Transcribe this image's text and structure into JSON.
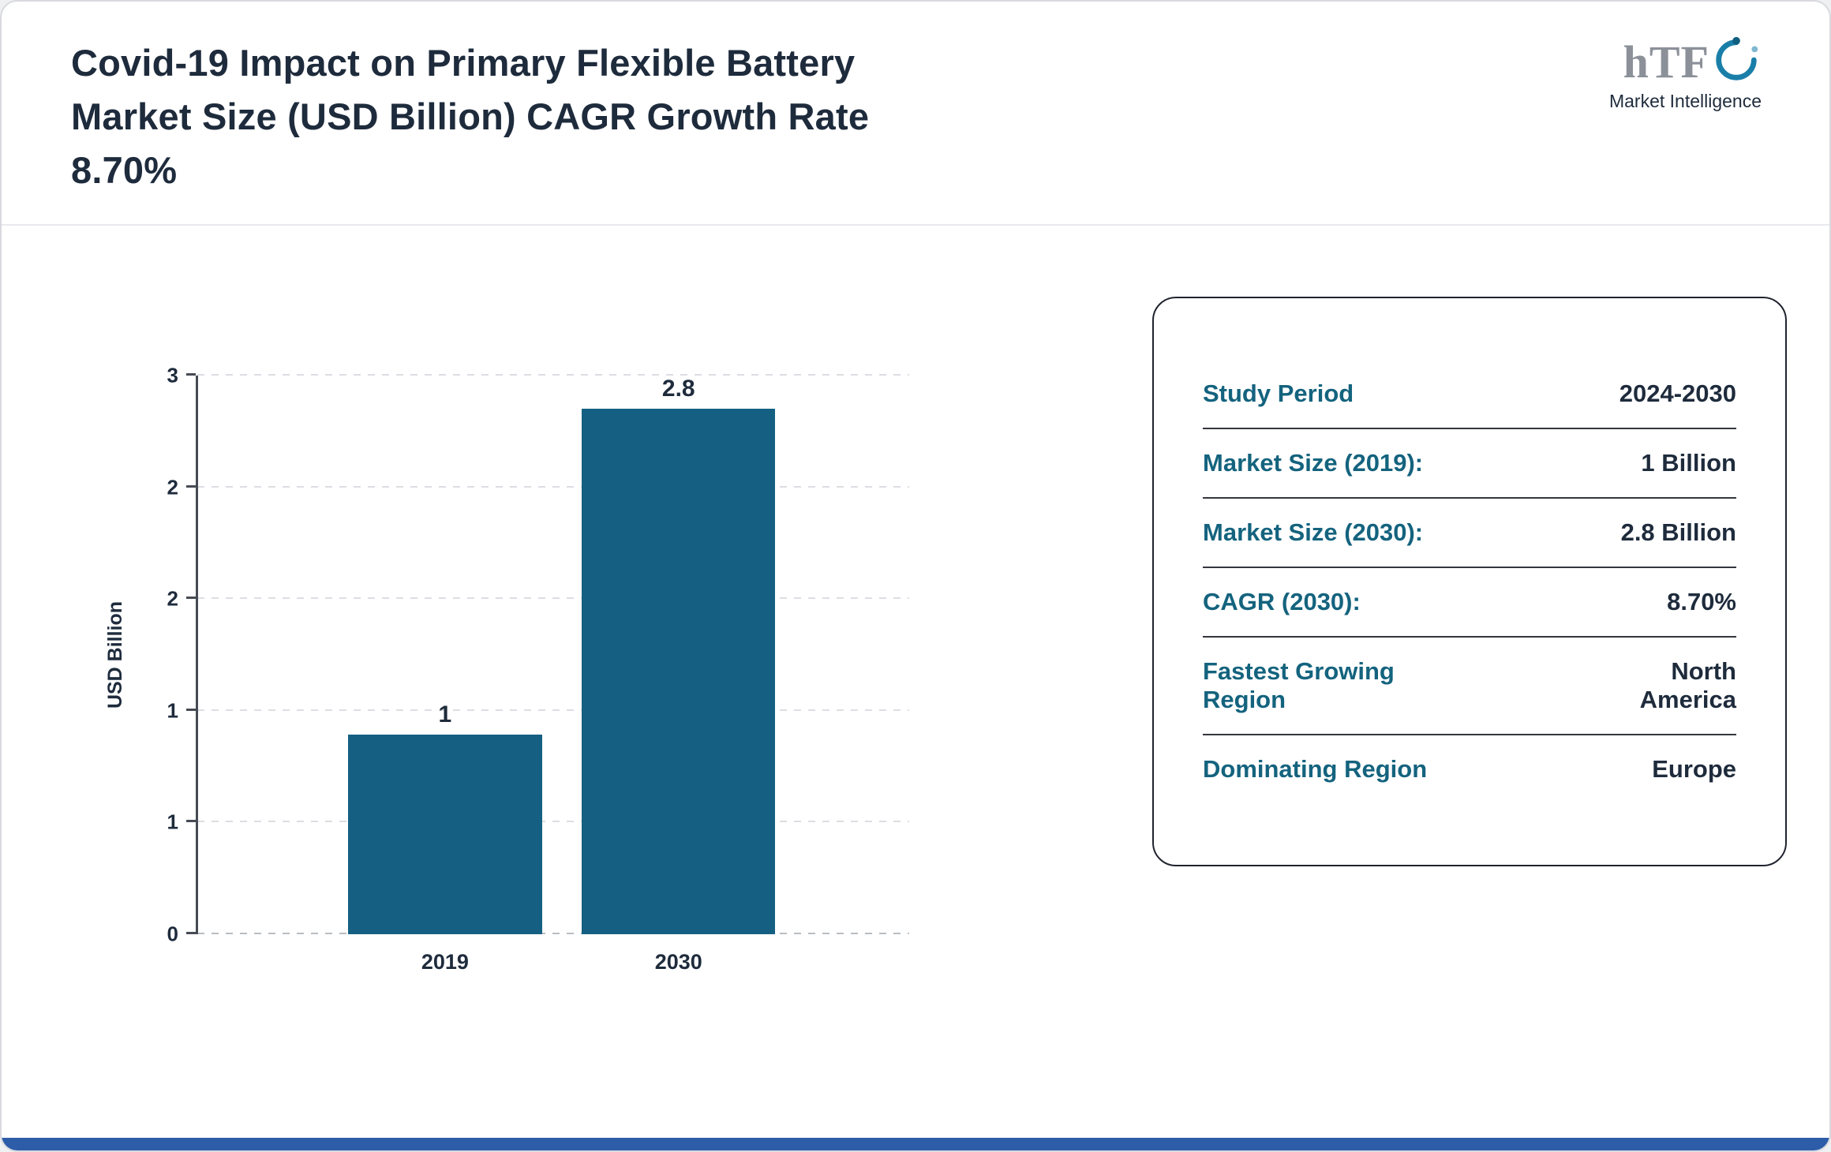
{
  "page": {
    "title_lines": [
      "Covid-19 Impact on Primary Flexible Battery",
      "Market Size (USD Billion) CAGR Growth Rate",
      "8.70%"
    ]
  },
  "logo": {
    "text": "hTF",
    "subtext": "Market Intelligence"
  },
  "chart_data": {
    "type": "bar",
    "title": "Covid-19 Impact on Primary Flexible Battery Market Size (USD Billion) CAGR Growth Rate 8.70%",
    "categories": [
      "2019",
      "2030"
    ],
    "values": [
      1,
      2.8
    ],
    "data_labels": [
      "1",
      "2.8"
    ],
    "xlabel": "",
    "ylabel": "USD Billion",
    "ylim": [
      0,
      3
    ],
    "ytick_labels_bottom_to_top": [
      "0",
      "1",
      "1",
      "2",
      "2",
      "3"
    ],
    "grid": "dashed-horizontal",
    "legend": "none",
    "bar_color": "#156082"
  },
  "info_panel": {
    "rows": [
      {
        "label": "Study Period",
        "value": "2024-2030"
      },
      {
        "label": "Market Size (2019):",
        "value": "1 Billion"
      },
      {
        "label": "Market Size (2030):",
        "value": "2.8 Billion"
      },
      {
        "label": "CAGR (2030):",
        "value": "8.70%"
      },
      {
        "label": "Fastest Growing Region",
        "value": "North America"
      },
      {
        "label": "Dominating Region",
        "value": "Europe"
      }
    ]
  },
  "colors": {
    "bar": "#156082",
    "panel_label_teal": "#14637e",
    "heading_navy": "#1e2b3c",
    "footer_strip_blue": "#2d5ca9"
  }
}
